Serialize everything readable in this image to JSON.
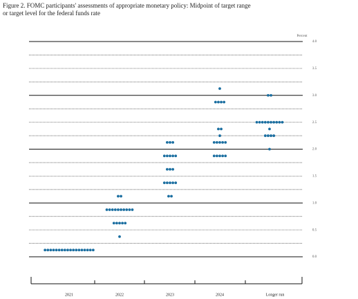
{
  "chart_data": {
    "type": "dot",
    "title": "Figure 2. FOMC participants' assessments of appropriate monetary policy: Midpoint of target range",
    "subtitle": "or target level for the federal funds rate",
    "ylabel": "Percent",
    "color": "#1a6ea0",
    "ylim": [
      0,
      4
    ],
    "yticks": [
      {
        "value": 0,
        "label": "0.0"
      },
      {
        "value": 0.5,
        "label": "0.5"
      },
      {
        "value": 1,
        "label": "1.0"
      },
      {
        "value": 1.5,
        "label": "1.5"
      },
      {
        "value": 2,
        "label": "2.0"
      },
      {
        "value": 2.5,
        "label": "2.5"
      },
      {
        "value": 3,
        "label": "3.0"
      },
      {
        "value": 3.5,
        "label": "3.5"
      },
      {
        "value": 4,
        "label": "4.0"
      }
    ],
    "grid_lines": [
      0,
      0.25,
      0.5,
      0.75,
      1,
      1.25,
      1.5,
      1.75,
      2,
      2.25,
      2.5,
      2.75,
      3,
      3.25,
      3.5,
      3.75,
      4
    ],
    "categories": [
      "2021",
      "2022",
      "2023",
      "2024",
      "Longer run"
    ],
    "dots": [
      [
        {
          "y": 0.125,
          "count": 18
        }
      ],
      [
        {
          "y": 0.375,
          "count": 1
        },
        {
          "y": 0.625,
          "count": 5
        },
        {
          "y": 0.875,
          "count": 10
        },
        {
          "y": 1.125,
          "count": 2
        }
      ],
      [
        {
          "y": 1.125,
          "count": 2
        },
        {
          "y": 1.375,
          "count": 5
        },
        {
          "y": 1.625,
          "count": 3
        },
        {
          "y": 1.875,
          "count": 5
        },
        {
          "y": 2.125,
          "count": 3
        }
      ],
      [
        {
          "y": 1.875,
          "count": 5
        },
        {
          "y": 2.125,
          "count": 5
        },
        {
          "y": 2.25,
          "count": 1
        },
        {
          "y": 2.375,
          "count": 2
        },
        {
          "y": 2.875,
          "count": 4
        },
        {
          "y": 3.125,
          "count": 1
        }
      ],
      [
        {
          "y": 2,
          "count": 1
        },
        {
          "y": 2.25,
          "count": 4
        },
        {
          "y": 2.375,
          "count": 1
        },
        {
          "y": 2.5,
          "count": 10
        },
        {
          "y": 3,
          "count": 2
        }
      ]
    ]
  }
}
